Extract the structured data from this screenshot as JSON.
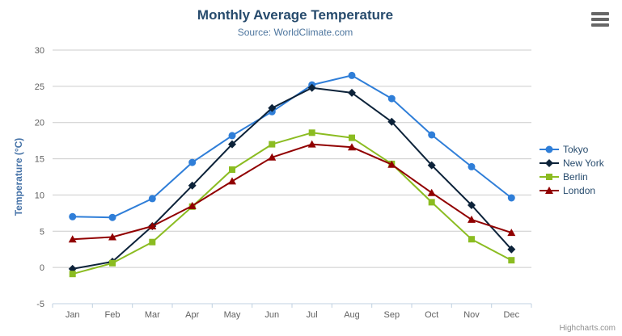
{
  "chart_data": {
    "type": "line",
    "title": "Monthly Average Temperature",
    "subtitle": "Source: WorldClimate.com",
    "categories": [
      "Jan",
      "Feb",
      "Mar",
      "Apr",
      "May",
      "Jun",
      "Jul",
      "Aug",
      "Sep",
      "Oct",
      "Nov",
      "Dec"
    ],
    "series": [
      {
        "name": "Tokyo",
        "color": "#2f7ed8",
        "marker": "circle",
        "values": [
          7.0,
          6.9,
          9.5,
          14.5,
          18.2,
          21.5,
          25.2,
          26.5,
          23.3,
          18.3,
          13.9,
          9.6
        ]
      },
      {
        "name": "New York",
        "color": "#0d233a",
        "marker": "diamond",
        "values": [
          -0.2,
          0.8,
          5.7,
          11.3,
          17.0,
          22.0,
          24.8,
          24.1,
          20.1,
          14.1,
          8.6,
          2.5
        ]
      },
      {
        "name": "Berlin",
        "color": "#8bbc21",
        "marker": "square",
        "values": [
          -0.9,
          0.6,
          3.5,
          8.4,
          13.5,
          17.0,
          18.6,
          17.9,
          14.3,
          9.0,
          3.9,
          1.0
        ]
      },
      {
        "name": "London",
        "color": "#910000",
        "marker": "triangle",
        "values": [
          3.9,
          4.2,
          5.7,
          8.5,
          11.9,
          15.2,
          17.0,
          16.6,
          14.2,
          10.3,
          6.6,
          4.8
        ]
      }
    ],
    "xlabel": "",
    "ylabel": "Temperature (°C)",
    "ylim": [
      -5,
      30
    ],
    "ytick_step": 5,
    "grid": true,
    "legend_position": "right",
    "style": {
      "title_color": "#274b6d",
      "subtitle_color": "#4d759e",
      "ylabel_color": "#4572a7",
      "axis_label_color": "#606060",
      "grid_color": "#cccccc",
      "axis_line_color": "#c0d0e0",
      "legend_text_color": "#274b6d"
    }
  },
  "credits": "Highcharts.com",
  "export_menu": {
    "icon": "hamburger-icon"
  }
}
